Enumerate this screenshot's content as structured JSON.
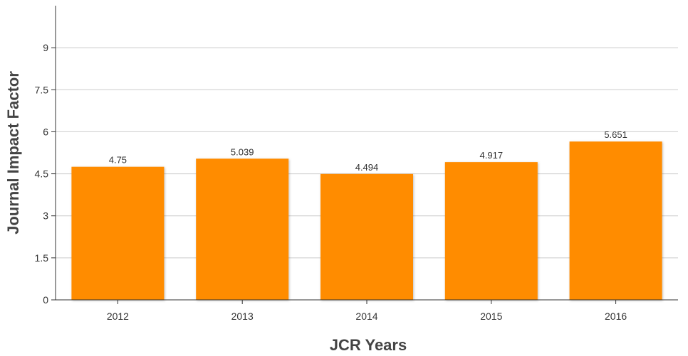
{
  "chart_data": {
    "type": "bar",
    "categories": [
      "2012",
      "2013",
      "2014",
      "2015",
      "2016"
    ],
    "values": [
      4.75,
      5.039,
      4.494,
      4.917,
      5.651
    ],
    "value_labels": [
      "4.75",
      "5.039",
      "4.494",
      "4.917",
      "5.651"
    ],
    "xlabel": "JCR Years",
    "ylabel": "Journal Impact Factor",
    "ylim": [
      0,
      10.5
    ],
    "yticks": [
      0,
      1.5,
      3,
      4.5,
      6,
      7.5,
      9
    ],
    "ytick_labels": [
      "0",
      "1.5",
      "3",
      "4.5",
      "6",
      "7.5",
      "9"
    ],
    "grid": true,
    "bar_color": "#ff8c00",
    "grid_color": "#cccccc",
    "axis_color": "#333333"
  }
}
